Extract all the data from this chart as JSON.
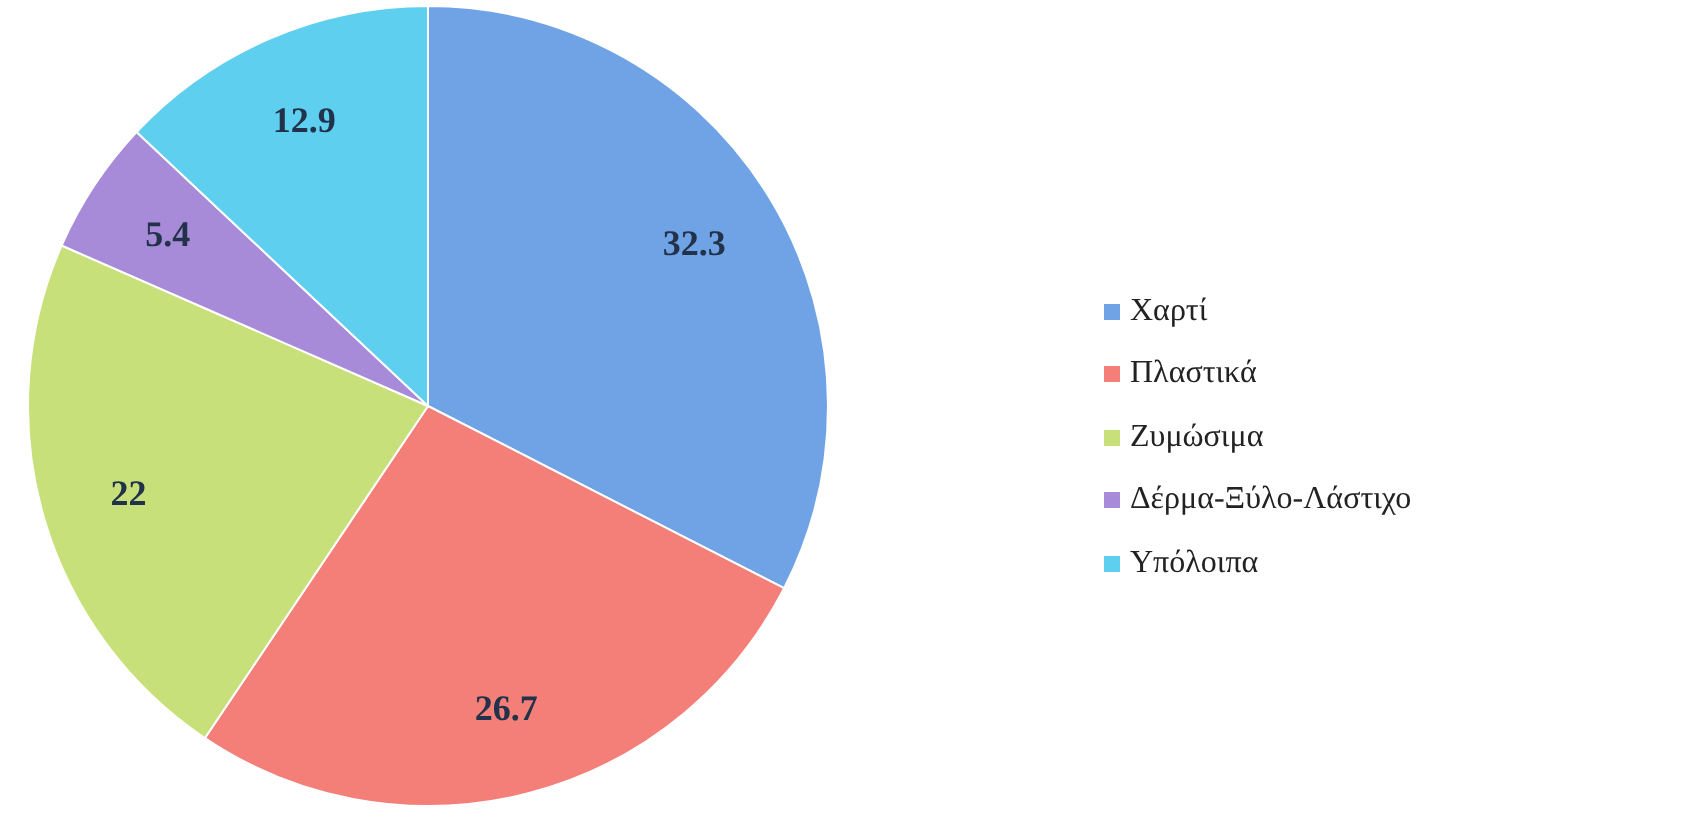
{
  "chart_data": {
    "type": "pie",
    "categories": [
      "Χαρτί",
      "Πλαστικά",
      "Ζυμώσιμα",
      "Δέρμα-Ξύλο-Λάστιχο",
      "Υπόλοιπα"
    ],
    "values": [
      32.3,
      26.7,
      22,
      5.4,
      12.9
    ],
    "colors": [
      "#6fa3e6",
      "#f47e78",
      "#c8e07a",
      "#a88bd8",
      "#5ecfee"
    ],
    "data_labels": true,
    "legend": "right"
  }
}
